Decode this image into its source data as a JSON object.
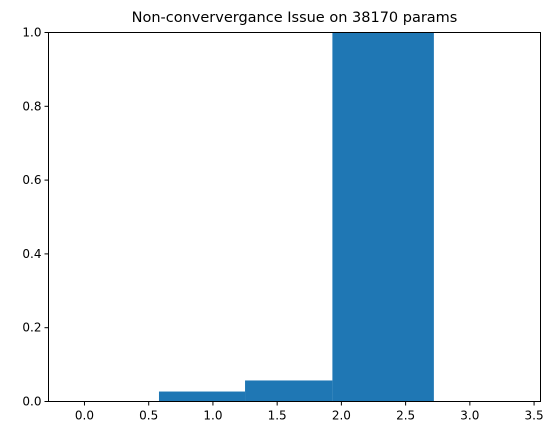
{
  "chart_data": {
    "type": "bar",
    "title": "Non-conververgance Issue  on 38170 params",
    "xlabel": "",
    "ylabel": "",
    "xlim": [
      -0.28,
      3.55
    ],
    "ylim": [
      0,
      1
    ],
    "grid": false,
    "x_ticks": [
      {
        "value": 0.0,
        "label": "0.0"
      },
      {
        "value": 0.5,
        "label": "0.5"
      },
      {
        "value": 1.0,
        "label": "1.0"
      },
      {
        "value": 1.5,
        "label": "1.5"
      },
      {
        "value": 2.0,
        "label": "2.0"
      },
      {
        "value": 2.5,
        "label": "2.5"
      },
      {
        "value": 3.0,
        "label": "3.0"
      },
      {
        "value": 3.5,
        "label": "3.5"
      }
    ],
    "y_ticks": [
      {
        "value": 0.0,
        "label": "0.0"
      },
      {
        "value": 0.2,
        "label": "0.2"
      },
      {
        "value": 0.4,
        "label": "0.4"
      },
      {
        "value": 0.6,
        "label": "0.6"
      },
      {
        "value": 0.8,
        "label": "0.8"
      },
      {
        "value": 1.0,
        "label": "1.0"
      }
    ],
    "bars": [
      {
        "x_start": 0.58,
        "x_end": 1.25,
        "value": 0.027
      },
      {
        "x_start": 1.25,
        "x_end": 1.93,
        "value": 0.057
      },
      {
        "x_start": 1.93,
        "x_end": 2.72,
        "value": 1.0
      }
    ],
    "bar_color": "#1f77b4"
  }
}
